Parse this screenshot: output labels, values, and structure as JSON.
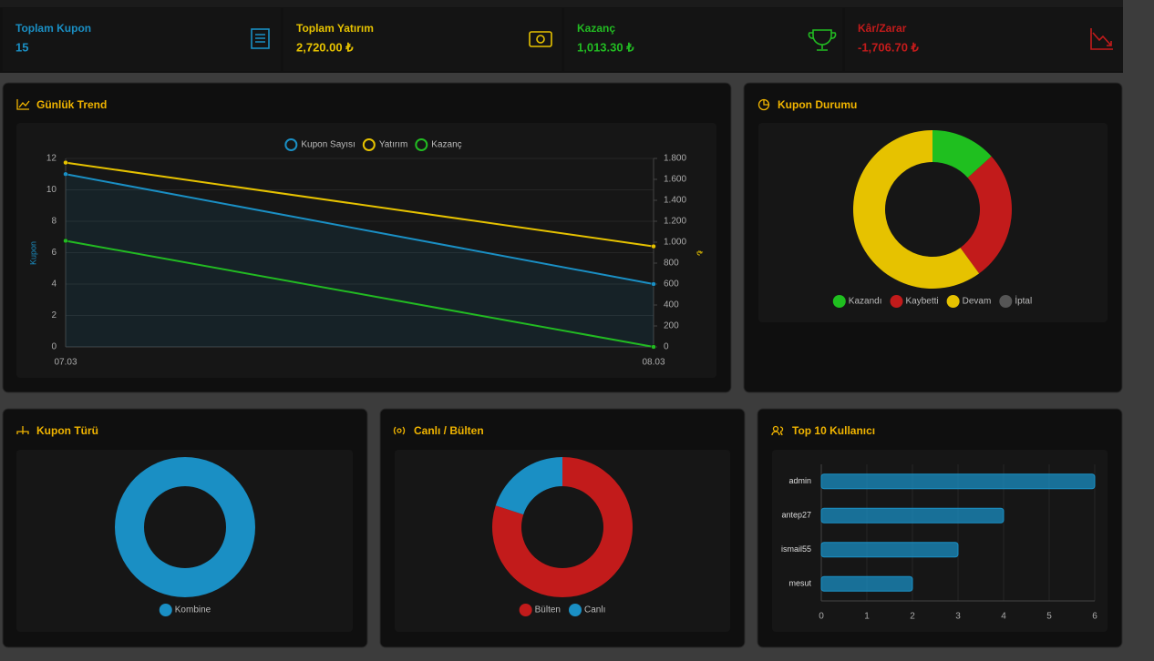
{
  "stats": [
    {
      "label": "Toplam Kupon",
      "value": "15",
      "color": "#1a8fc4"
    },
    {
      "label": "Toplam Yatırım",
      "value": "2,720.00 ₺",
      "color": "#e6c200"
    },
    {
      "label": "Kazanç",
      "value": "1,013.30 ₺",
      "color": "#22bb22"
    },
    {
      "label": "Kâr/Zarar",
      "value": "-1,706.70 ₺",
      "color": "#c21b1b"
    }
  ],
  "chart_data": [
    {
      "type": "line",
      "title": "Günlük Trend",
      "categories": [
        "07.03",
        "08.03"
      ],
      "ylabel": "Kupon",
      "y2label": "₺",
      "grid": true,
      "ylim": [
        0,
        12
      ],
      "yticks": [
        0,
        2,
        4,
        6,
        8,
        10,
        12
      ],
      "y2lim": [
        0,
        1800
      ],
      "y2ticks": [
        0,
        200,
        400,
        600,
        800,
        {
          "value": 1000,
          "label": "1.000"
        },
        {
          "value": 1200,
          "label": "1.200"
        },
        {
          "value": 1400,
          "label": "1.400"
        },
        {
          "value": 1600,
          "label": "1.600"
        },
        {
          "value": 1800,
          "label": "1.800"
        }
      ],
      "series": [
        {
          "name": "Kupon Sayısı",
          "color": "#1a8fc4",
          "values": [
            11,
            4
          ],
          "area": true
        },
        {
          "name": "Yatırım",
          "color": "#e6c200",
          "values": [
            1760,
            960
          ],
          "axis": "y2"
        },
        {
          "name": "Kazanç",
          "color": "#22bb22",
          "values": [
            1013.3,
            0
          ],
          "axis": "y2"
        }
      ]
    },
    {
      "type": "doughnut",
      "title": "Kupon Durumu",
      "categories": [
        "Kazandı",
        "Kaybetti",
        "Devam",
        "İptal"
      ],
      "values": [
        2,
        4,
        9,
        0
      ],
      "colors": [
        "#1fbf1f",
        "#c21b1b",
        "#e6c200",
        "#555555"
      ]
    },
    {
      "type": "doughnut",
      "title": "Kupon Türü",
      "categories": [
        "Kombine"
      ],
      "values": [
        15
      ],
      "colors": [
        "#1a8fc4"
      ]
    },
    {
      "type": "doughnut",
      "title": "Canlı / Bülten",
      "categories": [
        "Bülten",
        "Canlı"
      ],
      "values": [
        12,
        3
      ],
      "colors": [
        "#c21b1b",
        "#1a8fc4"
      ]
    },
    {
      "type": "bar",
      "orientation": "horizontal",
      "title": "Top 10 Kullanıcı",
      "categories": [
        "admin",
        "antep27",
        "ismail55",
        "mesut"
      ],
      "values": [
        6,
        4,
        3,
        2
      ],
      "color": "#1a8fc4",
      "xlim": [
        0,
        6
      ],
      "xticks": [
        0,
        1,
        2,
        3,
        4,
        5,
        6
      ],
      "grid": true
    }
  ]
}
